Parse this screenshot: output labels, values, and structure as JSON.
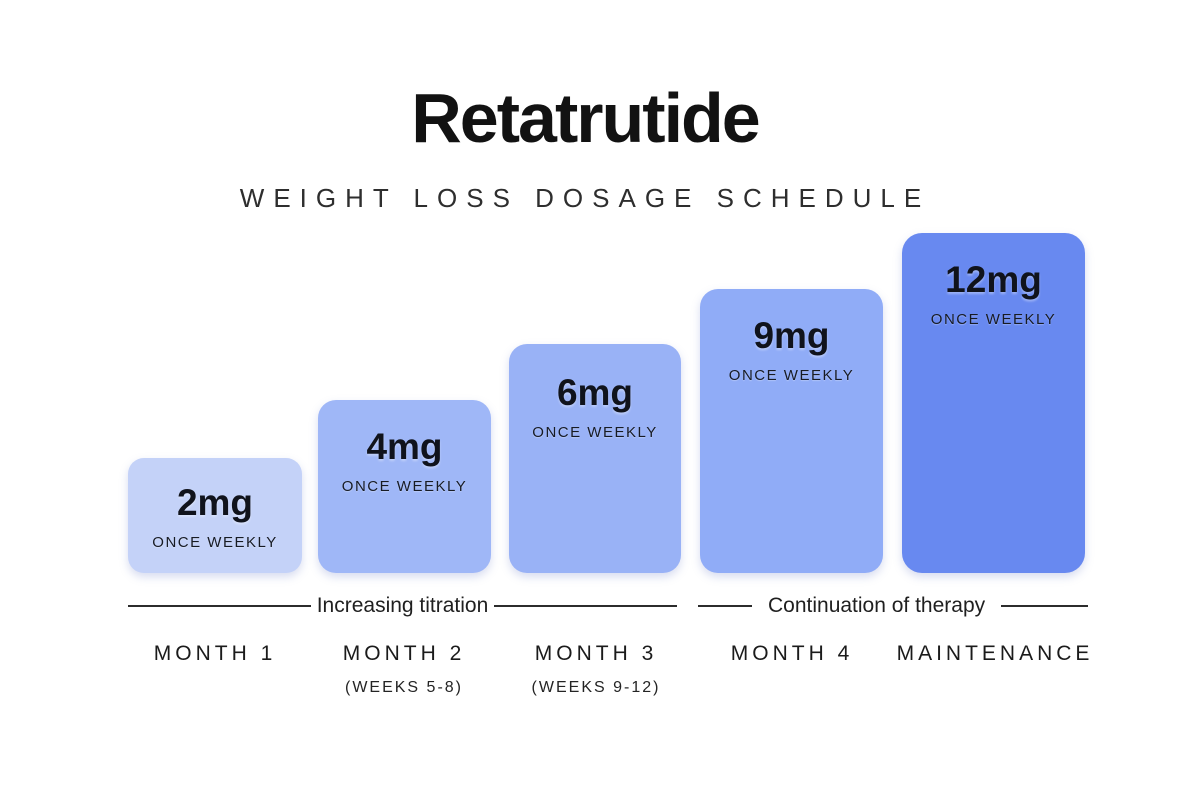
{
  "title": "Retatrutide",
  "subtitle": "WEIGHT LOSS DOSAGE SCHEDULE",
  "bars": [
    {
      "dose": "2mg",
      "frequency": "ONCE WEEKLY",
      "color": "#c4d2f8"
    },
    {
      "dose": "4mg",
      "frequency": "ONCE WEEKLY",
      "color": "#9fb7f7"
    },
    {
      "dose": "6mg",
      "frequency": "ONCE WEEKLY",
      "color": "#99b2f6"
    },
    {
      "dose": "9mg",
      "frequency": "ONCE WEEKLY",
      "color": "#90acf7"
    },
    {
      "dose": "12mg",
      "frequency": "ONCE WEEKLY",
      "color": "#6889f0"
    }
  ],
  "phases": [
    {
      "label": "Increasing titration"
    },
    {
      "label": "Continuation of therapy"
    }
  ],
  "months": [
    {
      "label": "MONTH 1",
      "sublabel": ""
    },
    {
      "label": "MONTH 2",
      "sublabel": "(WEEKS 5-8)"
    },
    {
      "label": "MONTH 3",
      "sublabel": "(WEEKS 9-12)"
    },
    {
      "label": "MONTH 4",
      "sublabel": ""
    },
    {
      "label": "MAINTENANCE",
      "sublabel": ""
    }
  ],
  "chart_data": {
    "type": "bar",
    "title": "Retatrutide",
    "subtitle": "WEIGHT LOSS DOSAGE SCHEDULE",
    "categories": [
      "MONTH 1",
      "MONTH 2 (WEEKS 5-8)",
      "MONTH 3 (WEEKS 9-12)",
      "MONTH 4",
      "MAINTENANCE"
    ],
    "values": [
      2,
      4,
      6,
      9,
      12
    ],
    "unit": "mg",
    "frequency": "ONCE WEEKLY",
    "bar_labels": [
      "2mg ONCE WEEKLY",
      "4mg ONCE WEEKLY",
      "6mg ONCE WEEKLY",
      "9mg ONCE WEEKLY",
      "12mg ONCE WEEKLY"
    ],
    "bar_colors": [
      "#c4d2f8",
      "#9fb7f7",
      "#99b2f6",
      "#90acf7",
      "#6889f0"
    ],
    "annotations": [
      {
        "label": "Increasing titration",
        "spans_categories": [
          "MONTH 1",
          "MONTH 2",
          "MONTH 3"
        ]
      },
      {
        "label": "Continuation of therapy",
        "spans_categories": [
          "MONTH 4",
          "MAINTENANCE"
        ]
      }
    ],
    "orientation": "vertical",
    "grid": false,
    "legend": false,
    "background": "#ffffff"
  }
}
